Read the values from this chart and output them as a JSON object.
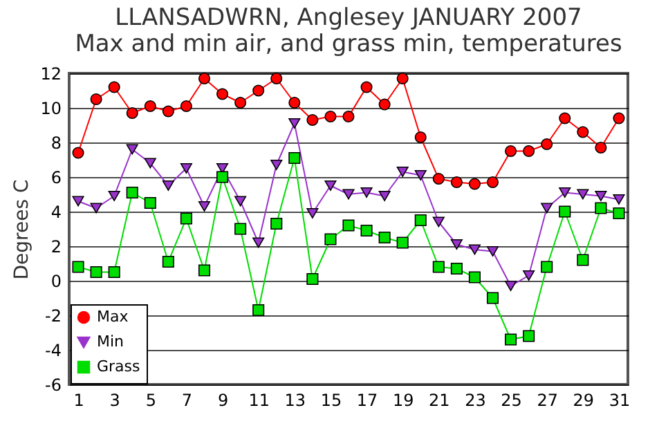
{
  "chart_data": {
    "type": "line",
    "title": "LLANSADWRN, Anglesey JANUARY 2007",
    "subtitle": "Max and min air, and grass min, temperatures",
    "ylabel": "Degrees C",
    "x": [
      1,
      2,
      3,
      4,
      5,
      6,
      7,
      8,
      9,
      10,
      11,
      12,
      13,
      14,
      15,
      16,
      17,
      18,
      19,
      20,
      21,
      22,
      23,
      24,
      25,
      26,
      27,
      28,
      29,
      30,
      31
    ],
    "xlim": [
      0.5,
      31.5
    ],
    "xticks": [
      1,
      3,
      5,
      7,
      9,
      11,
      13,
      15,
      17,
      19,
      21,
      23,
      25,
      27,
      29,
      31
    ],
    "ylim": [
      -6,
      12
    ],
    "yticks": [
      -6,
      -4,
      -2,
      0,
      2,
      4,
      6,
      8,
      10,
      12
    ],
    "grid": "y",
    "legend": "bottom left",
    "series": [
      {
        "name": "Max",
        "color": "#ff0000",
        "marker": "circle",
        "values": [
          7.4,
          10.5,
          11.2,
          9.7,
          10.1,
          9.8,
          10.1,
          11.7,
          10.8,
          10.3,
          11.0,
          11.7,
          10.3,
          9.3,
          9.5,
          9.5,
          11.2,
          10.2,
          11.7,
          8.3,
          5.9,
          5.7,
          5.6,
          5.7,
          7.5,
          7.5,
          7.9,
          9.4,
          8.6,
          7.7,
          9.4
        ]
      },
      {
        "name": "Min",
        "color": "#9933cc",
        "marker": "triangle",
        "values": [
          4.6,
          4.2,
          4.9,
          7.6,
          6.8,
          5.5,
          6.5,
          4.3,
          6.5,
          4.6,
          2.2,
          6.7,
          9.1,
          3.9,
          5.5,
          5.0,
          5.1,
          4.9,
          6.3,
          6.1,
          3.4,
          2.1,
          1.8,
          1.7,
          -0.3,
          0.3,
          4.2,
          5.1,
          5.0,
          4.9,
          4.7
        ]
      },
      {
        "name": "Grass",
        "color": "#00dd00",
        "marker": "square",
        "values": [
          0.8,
          0.5,
          0.5,
          5.1,
          4.5,
          1.1,
          3.6,
          0.6,
          6.0,
          3.0,
          -1.7,
          3.3,
          7.1,
          0.1,
          2.4,
          3.2,
          2.9,
          2.5,
          2.2,
          3.5,
          0.8,
          0.7,
          0.2,
          -1.0,
          -3.4,
          -3.2,
          0.8,
          4.0,
          1.2,
          4.2,
          3.9
        ]
      }
    ]
  }
}
